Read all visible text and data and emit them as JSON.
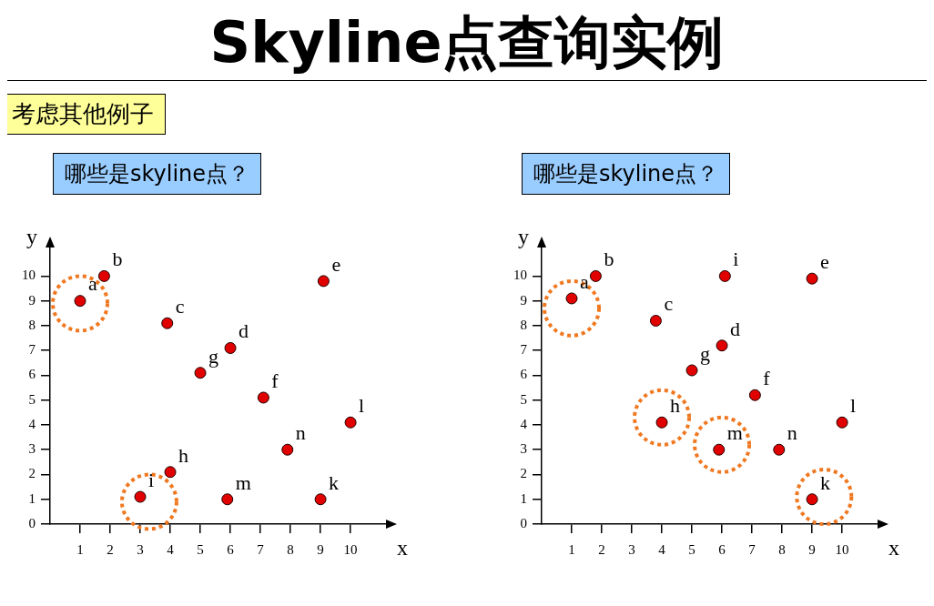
{
  "chart_data": [
    {
      "type": "other",
      "title": "Skyline点查询实例",
      "annotations": [
        "考虑其他例子"
      ]
    },
    {
      "type": "scatter",
      "title": "哪些是skyline点？",
      "xlabel": "x",
      "ylabel": "y",
      "xlim": [
        0,
        11.3
      ],
      "ylim": [
        0,
        11.3
      ],
      "xticks": [
        1,
        2,
        3,
        4,
        5,
        6,
        7,
        8,
        9,
        10
      ],
      "yticks": [
        0,
        1,
        2,
        3,
        4,
        5,
        6,
        7,
        8,
        9,
        10
      ],
      "grid": false,
      "legend": false,
      "marker": "circle",
      "series": [
        {
          "color": "#e00000",
          "x": [
            1,
            1.8,
            3.9,
            6,
            5,
            7.1,
            9.1,
            10,
            7.9,
            4,
            3,
            5.9,
            9
          ],
          "values": [
            9,
            10,
            8.1,
            7.1,
            6.1,
            5.1,
            9.8,
            4.1,
            3,
            2.1,
            1.1,
            1,
            1
          ]
        },
        {
          "color": "#f07820",
          "line_style": "dotted",
          "x": [
            1,
            3.3
          ],
          "values": [
            8.9,
            0.9
          ]
        }
      ],
      "annotations": [
        {
          "text": "a",
          "x": 1,
          "y": 9
        },
        {
          "text": "b",
          "x": 1.8,
          "y": 10
        },
        {
          "text": "c",
          "x": 3.9,
          "y": 8.1
        },
        {
          "text": "d",
          "x": 6,
          "y": 7.1
        },
        {
          "text": "e",
          "x": 9.1,
          "y": 9.8
        },
        {
          "text": "f",
          "x": 7.1,
          "y": 5.1
        },
        {
          "text": "g",
          "x": 5,
          "y": 6.1
        },
        {
          "text": "h",
          "x": 4,
          "y": 2.1
        },
        {
          "text": "i",
          "x": 3,
          "y": 1.1
        },
        {
          "text": "k",
          "x": 9,
          "y": 1
        },
        {
          "text": "l",
          "x": 10,
          "y": 4.1
        },
        {
          "text": "m",
          "x": 5.9,
          "y": 1
        },
        {
          "text": "n",
          "x": 7.9,
          "y": 3
        }
      ]
    },
    {
      "type": "scatter",
      "title": "哪些是skyline点？",
      "xlabel": "x",
      "ylabel": "y",
      "xlim": [
        0,
        11.3
      ],
      "ylim": [
        0,
        11.3
      ],
      "xticks": [
        1,
        2,
        3,
        4,
        5,
        6,
        7,
        8,
        9,
        10
      ],
      "yticks": [
        0,
        1,
        2,
        3,
        4,
        5,
        6,
        7,
        8,
        9,
        10
      ],
      "grid": false,
      "legend": false,
      "marker": "circle",
      "series": [
        {
          "color": "#e00000",
          "x": [
            1,
            1.8,
            3.8,
            6.1,
            9,
            6,
            5,
            7.1,
            4,
            10,
            5.9,
            7.9,
            9
          ],
          "values": [
            9.1,
            10,
            8.2,
            10,
            9.9,
            7.2,
            6.2,
            5.2,
            4.1,
            4.1,
            3,
            3,
            1
          ]
        },
        {
          "color": "#f07820",
          "line_style": "dotted",
          "x": [
            1,
            4,
            6,
            9.4
          ],
          "values": [
            8.7,
            4.3,
            3.2,
            1.1
          ]
        }
      ],
      "annotations": [
        {
          "text": "a",
          "x": 1,
          "y": 9.1
        },
        {
          "text": "b",
          "x": 1.8,
          "y": 10
        },
        {
          "text": "c",
          "x": 3.8,
          "y": 8.2
        },
        {
          "text": "i",
          "x": 6.1,
          "y": 10
        },
        {
          "text": "e",
          "x": 9,
          "y": 9.9
        },
        {
          "text": "d",
          "x": 6,
          "y": 7.2
        },
        {
          "text": "g",
          "x": 5,
          "y": 6.2
        },
        {
          "text": "f",
          "x": 7.1,
          "y": 5.2
        },
        {
          "text": "h",
          "x": 4,
          "y": 4.1
        },
        {
          "text": "l",
          "x": 10,
          "y": 4.1
        },
        {
          "text": "m",
          "x": 5.9,
          "y": 3
        },
        {
          "text": "n",
          "x": 7.9,
          "y": 3
        },
        {
          "text": "k",
          "x": 9,
          "y": 1
        }
      ]
    }
  ]
}
